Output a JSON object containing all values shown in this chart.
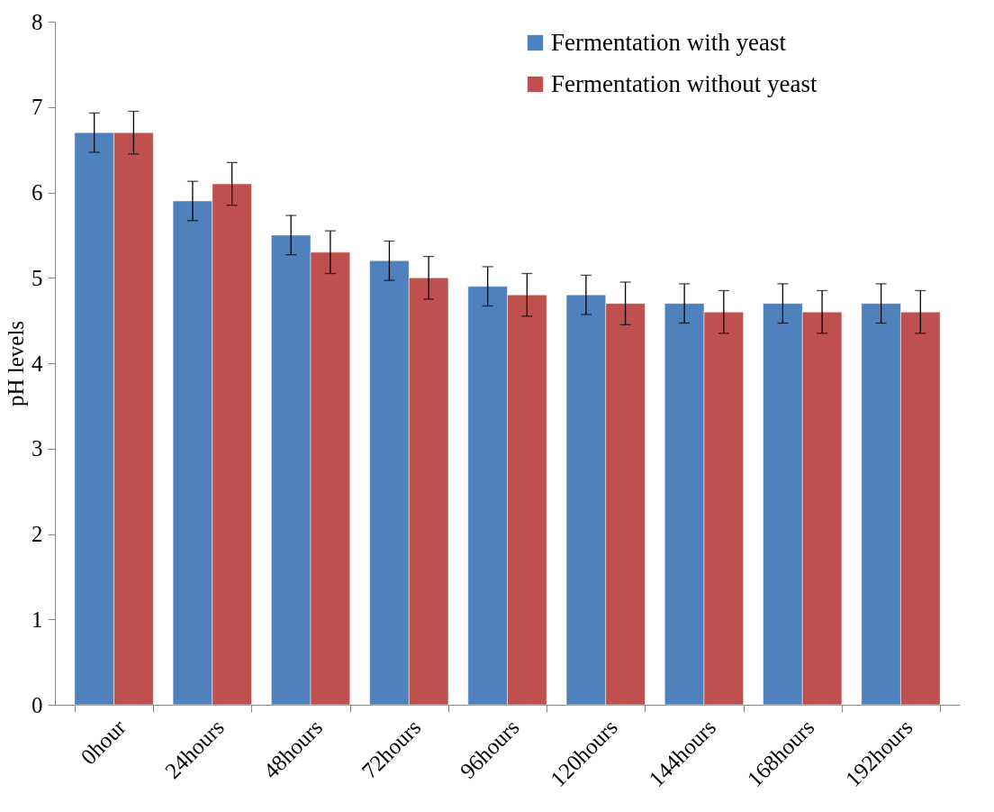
{
  "chart_data": {
    "type": "bar",
    "ylabel": "pH levels",
    "categories": [
      "0hour",
      "24hours",
      "48hours",
      "72hours",
      "96hours",
      "120hours",
      "144hours",
      "168hours",
      "192hours"
    ],
    "series": [
      {
        "name": "Fermentation with yeast",
        "color": "#4f81bd",
        "values": [
          6.7,
          5.9,
          5.5,
          5.2,
          4.9,
          4.8,
          4.7,
          4.7,
          4.7
        ],
        "errors": [
          0.23,
          0.23,
          0.23,
          0.23,
          0.23,
          0.23,
          0.23,
          0.23,
          0.23
        ]
      },
      {
        "name": "Fermentation without yeast",
        "color": "#c0504d",
        "values": [
          6.7,
          6.1,
          5.3,
          5.0,
          4.8,
          4.7,
          4.6,
          4.6,
          4.6
        ],
        "errors": [
          0.25,
          0.25,
          0.25,
          0.25,
          0.25,
          0.25,
          0.25,
          0.25,
          0.25
        ]
      }
    ],
    "ylim": [
      0,
      8
    ],
    "yticks": [
      0,
      1,
      2,
      3,
      4,
      5,
      6,
      7,
      8
    ],
    "grid": false,
    "legend": "top right"
  }
}
